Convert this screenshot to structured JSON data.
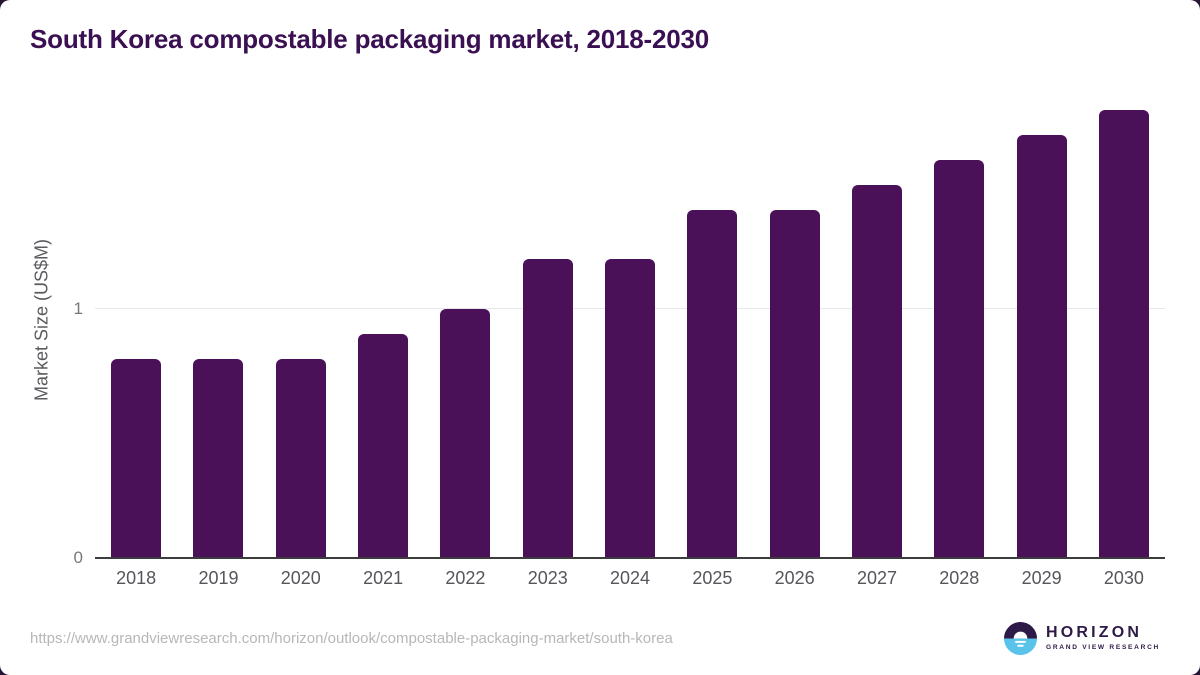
{
  "chart": {
    "title": "South Korea compostable packaging market, 2018-2030",
    "ylabel": "Market Size (US$M)"
  },
  "chart_data": {
    "type": "bar",
    "title": "South Korea compostable packaging market, 2018-2030",
    "categories": [
      "2018",
      "2019",
      "2020",
      "2021",
      "2022",
      "2023",
      "2024",
      "2025",
      "2026",
      "2027",
      "2028",
      "2029",
      "2030"
    ],
    "values": [
      0.8,
      0.8,
      0.8,
      0.9,
      1.0,
      1.2,
      1.2,
      1.4,
      1.4,
      1.5,
      1.6,
      1.7,
      1.8
    ],
    "xlabel": "",
    "ylabel": "Market Size (US$M)",
    "ylim": [
      0,
      1.84
    ],
    "yticks": [
      0,
      1
    ],
    "grid": "horizontal-at-nonzero-ticks",
    "legend": "none",
    "bar_color": "#4a1158"
  },
  "footer": {
    "source_url": "https://www.grandviewresearch.com/horizon/outlook/compostable-packaging-market/south-korea",
    "logo": {
      "brand": "HORIZON",
      "sub_brand": "GRAND VIEW RESEARCH",
      "icon": "horizon-sun-icon",
      "icon_top_color": "#2e1a47",
      "icon_bottom_color": "#59c3ea"
    }
  },
  "colors": {
    "bar": "#4a1158",
    "title": "#3a1053",
    "axis_text": "#54565b",
    "tick_text": "#77787b",
    "gridline": "#e7e7e9",
    "baseline": "#3c3c3e",
    "url_text": "#b6b7b9",
    "logo_purple": "#2e1a47",
    "logo_blue": "#59c3ea"
  }
}
